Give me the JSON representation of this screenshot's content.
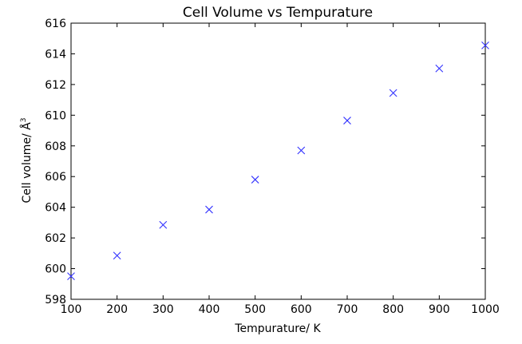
{
  "chart_data": {
    "type": "scatter",
    "title": "Cell Volume vs Tempurature",
    "xlabel": "Tempurature/ K",
    "ylabel": "Cell volume/ Å",
    "ylabel_superscript": "3",
    "xlim": [
      100,
      1000
    ],
    "ylim": [
      598,
      616
    ],
    "xticks": [
      "100",
      "200",
      "300",
      "400",
      "500",
      "600",
      "700",
      "800",
      "900",
      "1000"
    ],
    "yticks": [
      "598",
      "600",
      "602",
      "604",
      "606",
      "608",
      "610",
      "612",
      "614",
      "616"
    ],
    "grid": false,
    "marker": "x",
    "series": [
      {
        "color": "#3333ff",
        "x": [
          100,
          200,
          300,
          400,
          500,
          600,
          700,
          800,
          900,
          1000
        ],
        "y": [
          599.5,
          600.85,
          602.85,
          603.85,
          605.8,
          607.7,
          609.65,
          611.45,
          613.05,
          614.55
        ]
      }
    ]
  }
}
